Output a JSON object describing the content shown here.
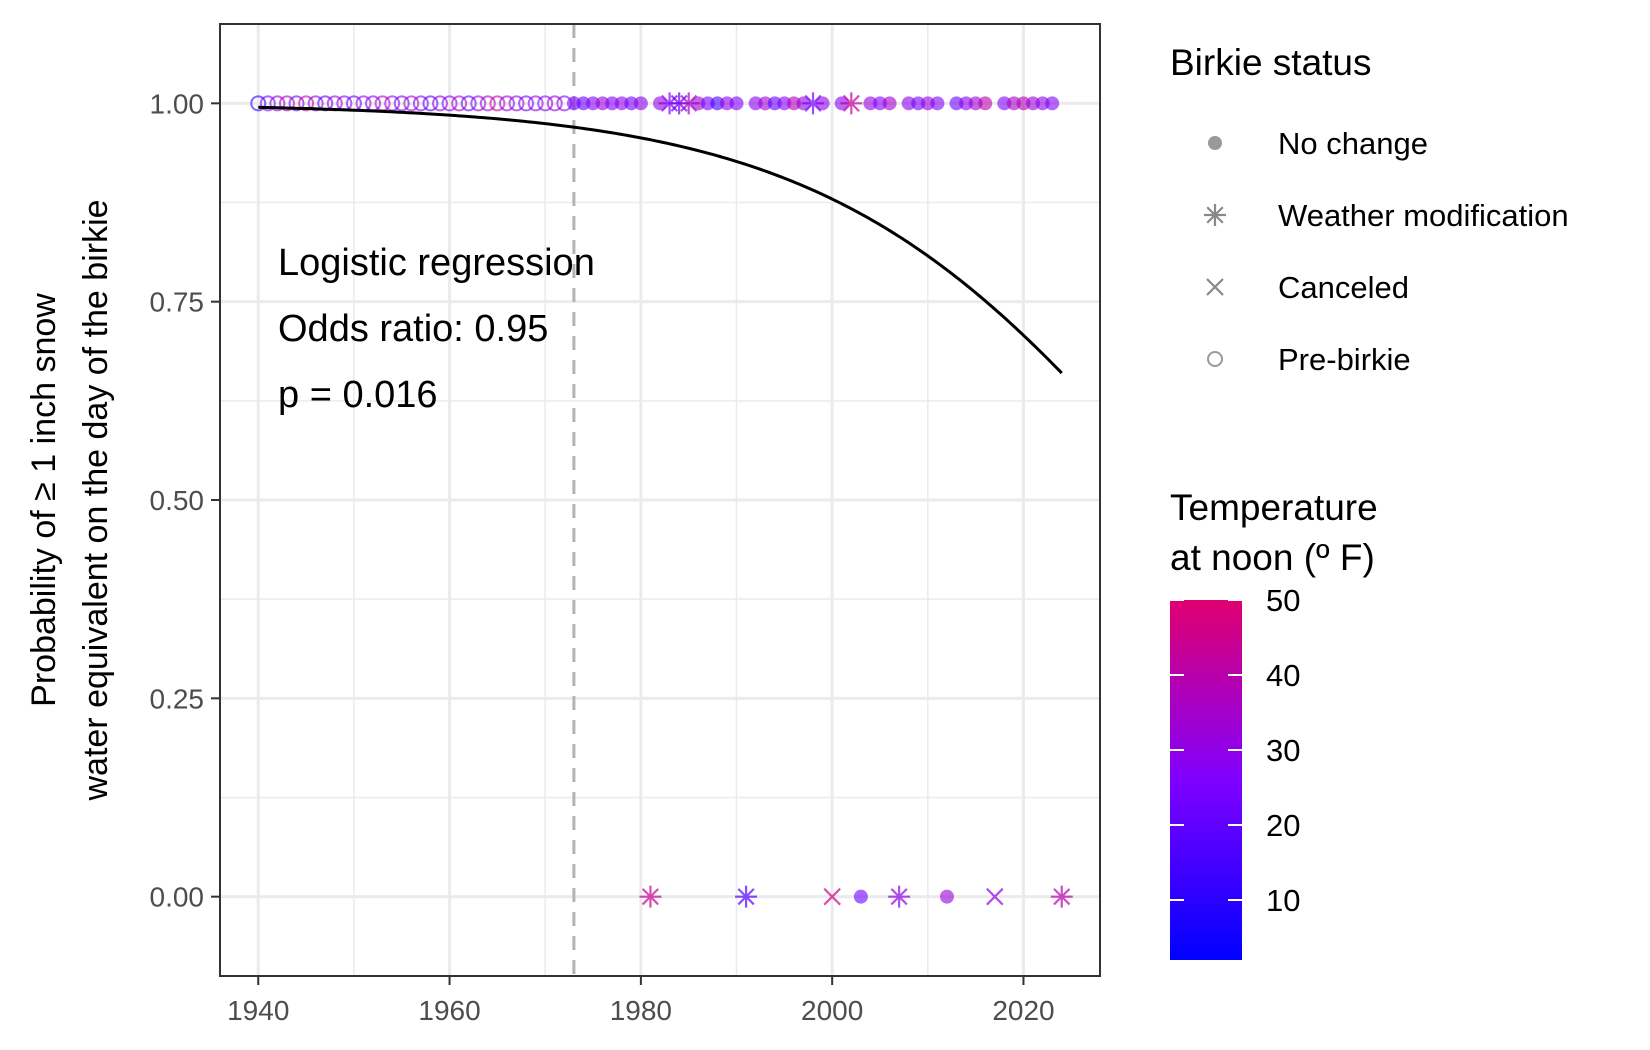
{
  "chart_data": {
    "type": "scatter",
    "title": "",
    "xlabel": "",
    "ylabel_lines": [
      "Probability of ≥ 1 inch snow",
      "water equivalent on the day of the birkie"
    ],
    "xlim": [
      1936,
      2028
    ],
    "ylim": [
      -0.1,
      1.1
    ],
    "x_ticks": [
      1940,
      1960,
      1980,
      2000,
      2020
    ],
    "y_ticks": [
      0,
      0.25,
      0.5,
      0.75,
      1
    ],
    "y_tick_labels": [
      "0.00",
      "0.25",
      "0.50",
      "0.75",
      "1.00"
    ],
    "grid": true,
    "first_birkie_line_year": 1973,
    "annotation": [
      "Logistic regression",
      "Odds ratio: 0.95",
      "p = 0.016"
    ],
    "fit": {
      "type": "logistic",
      "x_start": 1940,
      "x_end": 2024,
      "y_at_start": 0.995,
      "y_at_end": 0.66,
      "odds_ratio": 0.95
    },
    "status_legend": {
      "title": "Birkie status",
      "entries": [
        {
          "key": "no_change",
          "label": "No change",
          "shape": "dot"
        },
        {
          "key": "weather_mod",
          "label": "Weather modification",
          "shape": "asterisk"
        },
        {
          "key": "canceled",
          "label": "Canceled",
          "shape": "cross"
        },
        {
          "key": "pre_birkie",
          "label": "Pre-birkie",
          "shape": "circle"
        }
      ]
    },
    "color_legend": {
      "title_lines": [
        "Temperature",
        "at noon (º F)"
      ],
      "min": 2,
      "max": 50,
      "low_color": "#0000FF",
      "mid_color": "#8000FF",
      "high_color": "#E0006E",
      "ticks": [
        10,
        20,
        30,
        40,
        50
      ]
    },
    "points": [
      {
        "year": 1940,
        "y": 1,
        "status": "pre_birkie",
        "temp": 10
      },
      {
        "year": 1941,
        "y": 1,
        "status": "pre_birkie",
        "temp": 25
      },
      {
        "year": 1942,
        "y": 1,
        "status": "pre_birkie",
        "temp": 30
      },
      {
        "year": 1943,
        "y": 1,
        "status": "pre_birkie",
        "temp": 38
      },
      {
        "year": 1944,
        "y": 1,
        "status": "pre_birkie",
        "temp": 22
      },
      {
        "year": 1945,
        "y": 1,
        "status": "pre_birkie",
        "temp": 42
      },
      {
        "year": 1946,
        "y": 1,
        "status": "pre_birkie",
        "temp": 30
      },
      {
        "year": 1947,
        "y": 1,
        "status": "pre_birkie",
        "temp": 18
      },
      {
        "year": 1948,
        "y": 1,
        "status": "pre_birkie",
        "temp": 35
      },
      {
        "year": 1949,
        "y": 1,
        "status": "pre_birkie",
        "temp": 28
      },
      {
        "year": 1950,
        "y": 1,
        "status": "pre_birkie",
        "temp": 20
      },
      {
        "year": 1951,
        "y": 1,
        "status": "pre_birkie",
        "temp": 33
      },
      {
        "year": 1952,
        "y": 1,
        "status": "pre_birkie",
        "temp": 25
      },
      {
        "year": 1953,
        "y": 1,
        "status": "pre_birkie",
        "temp": 40
      },
      {
        "year": 1954,
        "y": 1,
        "status": "pre_birkie",
        "temp": 30
      },
      {
        "year": 1955,
        "y": 1,
        "status": "pre_birkie",
        "temp": 22
      },
      {
        "year": 1956,
        "y": 1,
        "status": "pre_birkie",
        "temp": 36
      },
      {
        "year": 1957,
        "y": 1,
        "status": "pre_birkie",
        "temp": 27
      },
      {
        "year": 1958,
        "y": 1,
        "status": "pre_birkie",
        "temp": 18
      },
      {
        "year": 1959,
        "y": 1,
        "status": "pre_birkie",
        "temp": 32
      },
      {
        "year": 1960,
        "y": 1,
        "status": "pre_birkie",
        "temp": 26
      },
      {
        "year": 1961,
        "y": 1,
        "status": "pre_birkie",
        "temp": 38
      },
      {
        "year": 1962,
        "y": 1,
        "status": "pre_birkie",
        "temp": 21
      },
      {
        "year": 1963,
        "y": 1,
        "status": "pre_birkie",
        "temp": 30
      },
      {
        "year": 1964,
        "y": 1,
        "status": "pre_birkie",
        "temp": 35
      },
      {
        "year": 1965,
        "y": 1,
        "status": "pre_birkie",
        "temp": 44
      },
      {
        "year": 1966,
        "y": 1,
        "status": "pre_birkie",
        "temp": 28
      },
      {
        "year": 1967,
        "y": 1,
        "status": "pre_birkie",
        "temp": 33
      },
      {
        "year": 1968,
        "y": 1,
        "status": "pre_birkie",
        "temp": 24
      },
      {
        "year": 1969,
        "y": 1,
        "status": "pre_birkie",
        "temp": 30
      },
      {
        "year": 1970,
        "y": 1,
        "status": "pre_birkie",
        "temp": 27
      },
      {
        "year": 1971,
        "y": 1,
        "status": "pre_birkie",
        "temp": 31
      },
      {
        "year": 1972,
        "y": 1,
        "status": "pre_birkie",
        "temp": 29
      },
      {
        "year": 1973,
        "y": 1,
        "status": "no_change",
        "temp": 25
      },
      {
        "year": 1974,
        "y": 1,
        "status": "no_change",
        "temp": 20
      },
      {
        "year": 1975,
        "y": 1,
        "status": "no_change",
        "temp": 28
      },
      {
        "year": 1976,
        "y": 1,
        "status": "no_change",
        "temp": 32
      },
      {
        "year": 1977,
        "y": 1,
        "status": "no_change",
        "temp": 26
      },
      {
        "year": 1978,
        "y": 1,
        "status": "no_change",
        "temp": 30
      },
      {
        "year": 1979,
        "y": 1,
        "status": "no_change",
        "temp": 24
      },
      {
        "year": 1980,
        "y": 1,
        "status": "no_change",
        "temp": 29
      },
      {
        "year": 1981,
        "y": 0,
        "status": "weather_mod",
        "temp": 44
      },
      {
        "year": 1982,
        "y": 1,
        "status": "no_change",
        "temp": 31
      },
      {
        "year": 1983,
        "y": 1,
        "status": "weather_mod",
        "temp": 28
      },
      {
        "year": 1984,
        "y": 1,
        "status": "weather_mod",
        "temp": 22
      },
      {
        "year": 1985,
        "y": 1,
        "status": "weather_mod",
        "temp": 36
      },
      {
        "year": 1986,
        "y": 1,
        "status": "no_change",
        "temp": 33
      },
      {
        "year": 1987,
        "y": 1,
        "status": "no_change",
        "temp": 25
      },
      {
        "year": 1988,
        "y": 1,
        "status": "no_change",
        "temp": 15
      },
      {
        "year": 1989,
        "y": 1,
        "status": "no_change",
        "temp": 30
      },
      {
        "year": 1990,
        "y": 1,
        "status": "no_change",
        "temp": 26
      },
      {
        "year": 1991,
        "y": 0,
        "status": "weather_mod",
        "temp": 18
      },
      {
        "year": 1992,
        "y": 1,
        "status": "no_change",
        "temp": 29
      },
      {
        "year": 1993,
        "y": 1,
        "status": "no_change",
        "temp": 33
      },
      {
        "year": 1994,
        "y": 1,
        "status": "no_change",
        "temp": 20
      },
      {
        "year": 1995,
        "y": 1,
        "status": "no_change",
        "temp": 27
      },
      {
        "year": 1996,
        "y": 1,
        "status": "no_change",
        "temp": 38
      },
      {
        "year": 1997,
        "y": 1,
        "status": "no_change",
        "temp": 31
      },
      {
        "year": 1998,
        "y": 1,
        "status": "weather_mod",
        "temp": 24
      },
      {
        "year": 1999,
        "y": 1,
        "status": "no_change",
        "temp": 30
      },
      {
        "year": 2000,
        "y": 0,
        "status": "canceled",
        "temp": 45
      },
      {
        "year": 2001,
        "y": 1,
        "status": "no_change",
        "temp": 28
      },
      {
        "year": 2002,
        "y": 1,
        "status": "weather_mod",
        "temp": 42
      },
      {
        "year": 2003,
        "y": 0,
        "status": "no_change",
        "temp": 22
      },
      {
        "year": 2004,
        "y": 1,
        "status": "no_change",
        "temp": 32
      },
      {
        "year": 2005,
        "y": 1,
        "status": "no_change",
        "temp": 26
      },
      {
        "year": 2006,
        "y": 1,
        "status": "no_change",
        "temp": 35
      },
      {
        "year": 2007,
        "y": 0,
        "status": "weather_mod",
        "temp": 30
      },
      {
        "year": 2008,
        "y": 1,
        "status": "no_change",
        "temp": 29
      },
      {
        "year": 2009,
        "y": 1,
        "status": "no_change",
        "temp": 24
      },
      {
        "year": 2010,
        "y": 1,
        "status": "no_change",
        "temp": 31
      },
      {
        "year": 2011,
        "y": 1,
        "status": "no_change",
        "temp": 27
      },
      {
        "year": 2012,
        "y": 0,
        "status": "no_change",
        "temp": 32
      },
      {
        "year": 2013,
        "y": 1,
        "status": "no_change",
        "temp": 22
      },
      {
        "year": 2014,
        "y": 1,
        "status": "no_change",
        "temp": 28
      },
      {
        "year": 2015,
        "y": 1,
        "status": "no_change",
        "temp": 33
      },
      {
        "year": 2016,
        "y": 1,
        "status": "no_change",
        "temp": 40
      },
      {
        "year": 2017,
        "y": 0,
        "status": "canceled",
        "temp": 30
      },
      {
        "year": 2018,
        "y": 1,
        "status": "no_change",
        "temp": 25
      },
      {
        "year": 2019,
        "y": 1,
        "status": "no_change",
        "temp": 36
      },
      {
        "year": 2020,
        "y": 1,
        "status": "no_change",
        "temp": 38
      },
      {
        "year": 2021,
        "y": 1,
        "status": "no_change",
        "temp": 32
      },
      {
        "year": 2022,
        "y": 1,
        "status": "no_change",
        "temp": 30
      },
      {
        "year": 2023,
        "y": 1,
        "status": "no_change",
        "temp": 27
      },
      {
        "year": 2024,
        "y": 0,
        "status": "weather_mod",
        "temp": 40
      }
    ]
  }
}
